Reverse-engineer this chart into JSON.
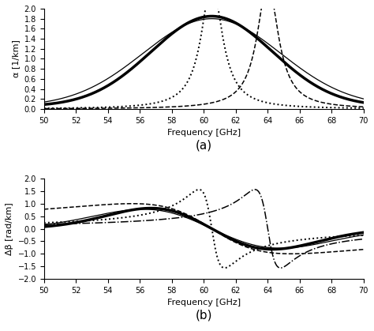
{
  "freq_min": 50,
  "freq_max": 70,
  "xlabel": "Frequency [GHz]",
  "ylabel_a": "α [1/km]",
  "ylabel_b": "Δβ [rad/km]",
  "label_a": "(a)",
  "label_b": "(b)",
  "ylim_a": [
    0,
    2
  ],
  "ylim_b": [
    -2,
    2
  ],
  "yticks_a": [
    0,
    0.2,
    0.4,
    0.6,
    0.8,
    1.0,
    1.2,
    1.4,
    1.6,
    1.8,
    2.0
  ],
  "yticks_b": [
    -2,
    -1.5,
    -1,
    -0.5,
    0,
    0.5,
    1,
    1.5,
    2
  ],
  "xticks": [
    50,
    52,
    54,
    56,
    58,
    60,
    62,
    64,
    66,
    68,
    70
  ],
  "fc_broad": 60.5,
  "sigma_broad": 3.8,
  "fc_broad2": 60.5,
  "sigma_broad2": 4.3,
  "fc_narrow1": 60.5,
  "gamma_narrow1": 0.8,
  "fc_narrow2": 64.0,
  "gamma_narrow2": 0.8,
  "alpha_peak_broad": 1.8,
  "alpha_peak_broad2": 1.75,
  "alpha_peak_narrow": 2.5,
  "alpha_baseline": 0.05
}
